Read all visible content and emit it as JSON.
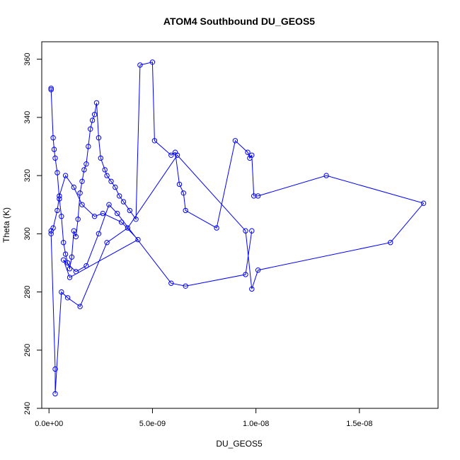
{
  "chart_data": {
    "type": "line",
    "title": "ATOM4 Southbound DU_GEOS5",
    "xlabel": "DU_GEOS5",
    "ylabel": "Theta (K)",
    "xlim": [
      -3.5e-10,
      1.88e-08
    ],
    "ylim": [
      240,
      366
    ],
    "x_ticks": [
      0,
      5e-09,
      1e-08,
      1.5e-08
    ],
    "x_tick_labels": [
      "0.0e+00",
      "5.0e-09",
      "1.0e-08",
      "1.5e-08"
    ],
    "y_ticks": [
      240,
      260,
      280,
      300,
      320,
      340,
      360
    ],
    "y_tick_labels": [
      "240",
      "260",
      "280",
      "300",
      "320",
      "340",
      "360"
    ],
    "grid": false,
    "marker": "open-circle",
    "color": "#0000ff",
    "series": [
      {
        "x": [
          1e-10,
          1e-10,
          2e-10,
          2.5e-10,
          3e-10,
          4e-10,
          5e-10,
          6e-10,
          7e-10,
          8e-10,
          9e-10,
          1e-09,
          1.1e-09,
          1.2e-09,
          1.3e-09,
          1.4e-09,
          1.5e-09,
          1.6e-09,
          1.7e-09,
          1.8e-09,
          1.9e-09,
          2e-09,
          2.1e-09,
          2.2e-09,
          2.3e-09,
          2.4e-09,
          2.5e-09,
          2.7e-09,
          2.8e-09,
          3e-09,
          3.2e-09,
          3.4e-09,
          3.6e-09,
          3.9e-09,
          4.2e-09,
          4.4e-09,
          5e-09,
          5.1e-09,
          5.9e-09,
          6.1e-09,
          6.3e-09,
          6.5e-09,
          6.6e-09,
          8.1e-09,
          9e-09,
          9.6e-09,
          9.7e-09,
          9.8e-09,
          9.9e-09,
          1.01e-08,
          1.34e-08,
          1.81e-08,
          1.65e-08,
          1.01e-08,
          9.8e-09,
          9.5e-09,
          6.2e-09,
          3.8e-09,
          2.8e-09,
          1.5e-09,
          9e-10,
          6e-10,
          3e-10,
          3e-10,
          1e-10,
          1e-10,
          2e-10,
          4e-10,
          5e-10,
          8e-10,
          1.2e-09,
          1.6e-09,
          2.2e-09,
          2.6e-09,
          3.5e-09,
          4.3e-09,
          1e-09,
          7e-10,
          1.3e-09,
          1.8e-09,
          2.4e-09,
          2.9e-09,
          3.3e-09,
          5.9e-09,
          6.6e-09,
          9.5e-09,
          9.8e-09
        ],
        "y": [
          350,
          349.5,
          333,
          329,
          326,
          321,
          312,
          306,
          297,
          293,
          290,
          288,
          292,
          301,
          299,
          305,
          314,
          318,
          322,
          324,
          330,
          336,
          339,
          341,
          345,
          333,
          326,
          322,
          320,
          318,
          316,
          313,
          311,
          308,
          305,
          358,
          359,
          332,
          327,
          328,
          317,
          314,
          308,
          302,
          332,
          328,
          326,
          327,
          313,
          313,
          320,
          310.5,
          297,
          287.5,
          281,
          301,
          327,
          302,
          297,
          275,
          278,
          280,
          245,
          253.5,
          300,
          301,
          302,
          308,
          313,
          320,
          316,
          310,
          306,
          307,
          304,
          298,
          285,
          291,
          287,
          289,
          300,
          310,
          307,
          283,
          282,
          286,
          301
        ]
      }
    ]
  }
}
